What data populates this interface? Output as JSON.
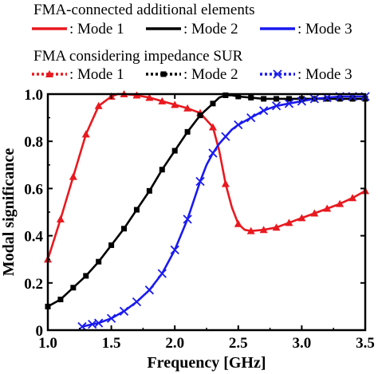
{
  "chart_data": {
    "type": "line",
    "title": "",
    "xlabel": "Frequency [GHz]",
    "ylabel": "Modal significance",
    "xlim": [
      1.0,
      3.5
    ],
    "ylim": [
      0,
      1.0
    ],
    "xticks": [
      "1.0",
      "1.5",
      "2.0",
      "2.5",
      "3.0",
      "3.5"
    ],
    "yticks": [
      "0",
      "0.2",
      "0.4",
      "0.6",
      "0.8",
      "1.0"
    ],
    "grid": false,
    "legend": {
      "placement": "top",
      "group1_heading": "FMA-connected additional elements",
      "group2_heading": "FMA considering impedance SUR",
      "group1_labels": [
        ": Mode 1",
        ": Mode 2",
        ": Mode 3"
      ],
      "group2_labels": [
        ": Mode 1",
        ": Mode 2",
        ": Mode 3"
      ]
    },
    "series": [
      {
        "name": "Mode 1",
        "group": 1,
        "color": "#e8191f",
        "style": "solid",
        "marker": "none",
        "x": [
          1.0,
          1.1,
          1.2,
          1.3,
          1.4,
          1.5,
          1.55,
          1.6,
          1.7,
          1.8,
          1.9,
          2.0,
          2.1,
          2.2,
          2.3,
          2.35,
          2.4,
          2.45,
          2.5,
          2.55,
          2.6,
          2.7,
          2.8,
          2.9,
          3.0,
          3.1,
          3.2,
          3.3,
          3.4,
          3.5
        ],
        "y": [
          0.3,
          0.47,
          0.65,
          0.83,
          0.95,
          0.99,
          1.0,
          1.0,
          0.995,
          0.985,
          0.97,
          0.955,
          0.94,
          0.92,
          0.86,
          0.76,
          0.62,
          0.52,
          0.45,
          0.425,
          0.42,
          0.425,
          0.435,
          0.455,
          0.475,
          0.495,
          0.515,
          0.535,
          0.56,
          0.59
        ]
      },
      {
        "name": "Mode 2",
        "group": 1,
        "color": "#000000",
        "style": "solid",
        "marker": "none",
        "x": [
          1.0,
          1.1,
          1.2,
          1.3,
          1.4,
          1.5,
          1.6,
          1.7,
          1.8,
          1.9,
          2.0,
          2.1,
          2.2,
          2.3,
          2.35,
          2.4,
          2.45,
          2.5,
          2.6,
          2.7,
          2.8,
          2.9,
          3.0,
          3.1,
          3.2,
          3.3,
          3.4,
          3.5
        ],
        "y": [
          0.1,
          0.13,
          0.18,
          0.23,
          0.29,
          0.36,
          0.43,
          0.51,
          0.59,
          0.68,
          0.76,
          0.84,
          0.91,
          0.96,
          0.985,
          0.995,
          0.995,
          0.99,
          0.985,
          0.98,
          0.98,
          0.98,
          0.98,
          0.98,
          0.98,
          0.98,
          0.98,
          0.98
        ]
      },
      {
        "name": "Mode 3",
        "group": 1,
        "color": "#1a1af0",
        "style": "solid",
        "marker": "none",
        "x": [
          1.27,
          1.35,
          1.4,
          1.5,
          1.6,
          1.7,
          1.8,
          1.9,
          2.0,
          2.1,
          2.15,
          2.2,
          2.25,
          2.3,
          2.35,
          2.4,
          2.45,
          2.5,
          2.6,
          2.7,
          2.8,
          2.9,
          3.0,
          3.1,
          3.2,
          3.3,
          3.4,
          3.5
        ],
        "y": [
          0.015,
          0.025,
          0.03,
          0.05,
          0.08,
          0.12,
          0.17,
          0.24,
          0.34,
          0.47,
          0.55,
          0.63,
          0.7,
          0.75,
          0.79,
          0.82,
          0.85,
          0.87,
          0.9,
          0.93,
          0.95,
          0.96,
          0.97,
          0.98,
          0.985,
          0.99,
          0.99,
          0.99
        ]
      },
      {
        "name": "Mode 1",
        "group": 2,
        "color": "#e8191f",
        "style": "dotted",
        "marker": "triangle",
        "x": [
          1.0,
          1.1,
          1.2,
          1.3,
          1.4,
          1.5,
          1.6,
          1.7,
          1.8,
          1.9,
          2.0,
          2.1,
          2.2,
          2.3,
          2.4,
          2.5,
          2.6,
          2.7,
          2.8,
          2.9,
          3.0,
          3.1,
          3.2,
          3.3,
          3.4,
          3.5
        ],
        "y": [
          0.3,
          0.47,
          0.65,
          0.83,
          0.95,
          0.99,
          1.0,
          0.995,
          0.985,
          0.97,
          0.955,
          0.94,
          0.92,
          0.86,
          0.62,
          0.45,
          0.42,
          0.425,
          0.435,
          0.455,
          0.475,
          0.495,
          0.515,
          0.535,
          0.56,
          0.59
        ]
      },
      {
        "name": "Mode 2",
        "group": 2,
        "color": "#000000",
        "style": "dotted",
        "marker": "square",
        "x": [
          1.0,
          1.1,
          1.2,
          1.3,
          1.4,
          1.5,
          1.6,
          1.7,
          1.8,
          1.9,
          2.0,
          2.1,
          2.2,
          2.3,
          2.4,
          2.5,
          2.6,
          2.7,
          2.8,
          2.9,
          3.0,
          3.1,
          3.2,
          3.3,
          3.4,
          3.5
        ],
        "y": [
          0.1,
          0.13,
          0.18,
          0.23,
          0.29,
          0.36,
          0.43,
          0.51,
          0.59,
          0.68,
          0.76,
          0.84,
          0.91,
          0.96,
          0.995,
          0.99,
          0.985,
          0.98,
          0.98,
          0.98,
          0.98,
          0.98,
          0.98,
          0.98,
          0.98,
          0.98
        ]
      },
      {
        "name": "Mode 3",
        "group": 2,
        "color": "#1a1af0",
        "style": "dotted",
        "marker": "x",
        "x": [
          1.27,
          1.35,
          1.4,
          1.5,
          1.6,
          1.7,
          1.8,
          1.9,
          2.0,
          2.1,
          2.2,
          2.3,
          2.4,
          2.5,
          2.6,
          2.7,
          2.8,
          2.9,
          3.0,
          3.1,
          3.2,
          3.3,
          3.4,
          3.5
        ],
        "y": [
          0.015,
          0.025,
          0.03,
          0.05,
          0.08,
          0.12,
          0.17,
          0.24,
          0.34,
          0.47,
          0.63,
          0.75,
          0.82,
          0.87,
          0.9,
          0.93,
          0.95,
          0.96,
          0.97,
          0.98,
          0.985,
          0.99,
          0.99,
          0.99
        ]
      }
    ]
  }
}
